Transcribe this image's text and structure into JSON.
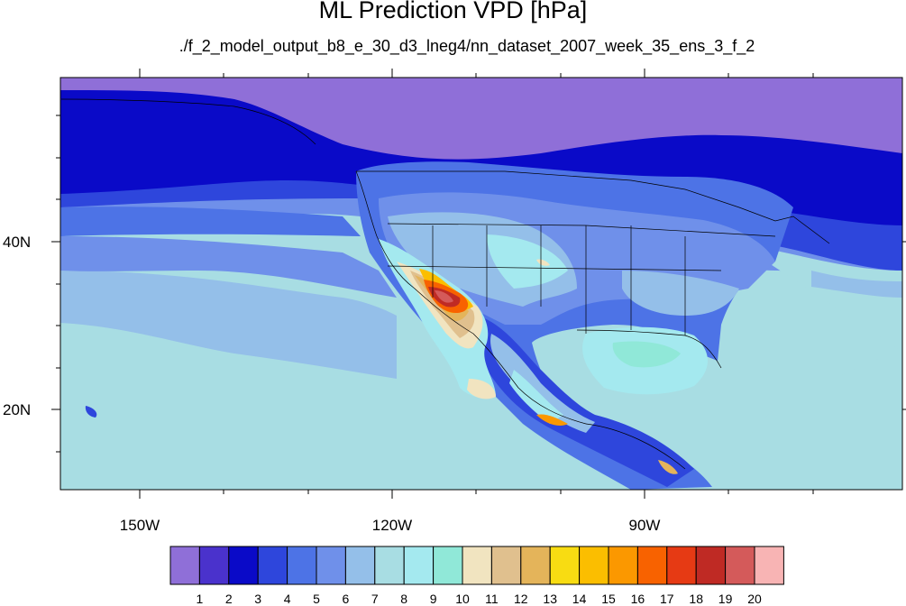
{
  "title": "ML Prediction VPD [hPa]",
  "subtitle": "./f_2_model_output_b8_e_30_d3_lneg4/nn_dataset_2007_week_35_ens_3_f_2",
  "axes": {
    "longitude_labels": [
      "150W",
      "120W",
      "90W"
    ],
    "latitude_labels": [
      "40N",
      "20N"
    ]
  },
  "colorbar": {
    "labels": [
      "1",
      "2",
      "3",
      "4",
      "5",
      "6",
      "7",
      "8",
      "9",
      "10",
      "11",
      "12",
      "13",
      "14",
      "15",
      "16",
      "17",
      "18",
      "19",
      "20"
    ],
    "colors": [
      "#8f6fd8",
      "#4a32cc",
      "#0a0ac8",
      "#2e46dc",
      "#4d73e6",
      "#6f90ea",
      "#94bfe9",
      "#a8dde3",
      "#a4e9ef",
      "#90e8d8",
      "#f1e4c0",
      "#e0c08e",
      "#e4b45a",
      "#f8dc12",
      "#fbbe00",
      "#fb9800",
      "#f86200",
      "#e63a14",
      "#bf2a24",
      "#d45a5a",
      "#f8b4b4"
    ]
  }
}
